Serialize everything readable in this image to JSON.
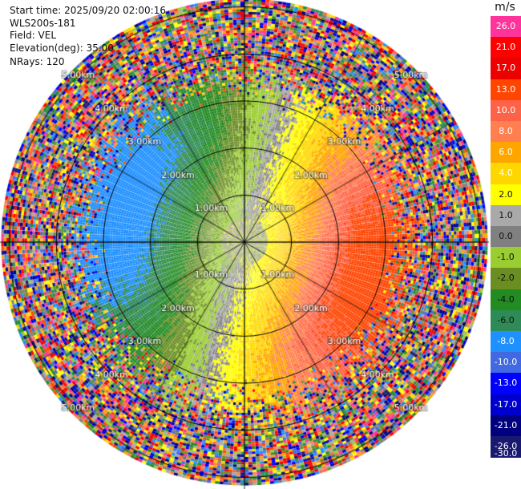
{
  "header": {
    "start_time": "Start time: 2025/09/20 02:00:16",
    "instrument": "WLS200s-181",
    "field": "Field: VEL",
    "elevation": "Elevation(deg): 35.00",
    "nrays": "NRays: 120"
  },
  "colorbar": {
    "unit": "m/s",
    "levels": [
      {
        "label": "26.0",
        "color": "#ff3399"
      },
      {
        "label": "21.0",
        "color": "#ff0000"
      },
      {
        "label": "17.0",
        "color": "#ee0000"
      },
      {
        "label": "13.0",
        "color": "#ff4500"
      },
      {
        "label": "10.0",
        "color": "#ff6347"
      },
      {
        "label": "8.0",
        "color": "#ff7f50"
      },
      {
        "label": "6.0",
        "color": "#ffa500"
      },
      {
        "label": "4.0",
        "color": "#ffd700"
      },
      {
        "label": "2.0",
        "color": "#ffff00"
      },
      {
        "label": "1.0",
        "color": "#a9a9a9"
      },
      {
        "label": "0.0",
        "color": "#808080"
      },
      {
        "label": "-1.0",
        "color": "#9acd32"
      },
      {
        "label": "-2.0",
        "color": "#6b8e23"
      },
      {
        "label": "-4.0",
        "color": "#228b22"
      },
      {
        "label": "-6.0",
        "color": "#2e8b57"
      },
      {
        "label": "-8.0",
        "color": "#1e90ff"
      },
      {
        "label": "-10.0",
        "color": "#4169e1"
      },
      {
        "label": "-13.0",
        "color": "#0000ff"
      },
      {
        "label": "-17.0",
        "color": "#0000cd"
      },
      {
        "label": "-21.0",
        "color": "#000080"
      },
      {
        "label": "-26.0",
        "color": "#191970"
      },
      {
        "label": "-30.0",
        "color": ""
      }
    ]
  },
  "chart_data": {
    "type": "heatmap",
    "field": "VEL",
    "units": "m/s",
    "rings": [
      {
        "range_km": 1.0,
        "label": "1.00km"
      },
      {
        "range_km": 2.0,
        "label": "2.00km"
      },
      {
        "range_km": 3.0,
        "label": "3.00km"
      },
      {
        "range_km": 4.0,
        "label": "4.00km"
      },
      {
        "range_km": 5.0,
        "label": "5.00km"
      }
    ],
    "ring_label_azimuths_deg": [
      45,
      135,
      225,
      315
    ],
    "n_rays": 120,
    "max_range_km": 5.15,
    "radial_lines_deg": [
      0,
      30,
      60,
      90,
      120,
      150,
      180,
      210,
      240,
      270,
      300,
      330
    ],
    "velocity_pattern": {
      "positive_sector_center_deg": 105,
      "negative_sector_center_deg": 285,
      "inner_clean_range_km": 2.9,
      "noise_start_range_km": 3.3
    }
  }
}
